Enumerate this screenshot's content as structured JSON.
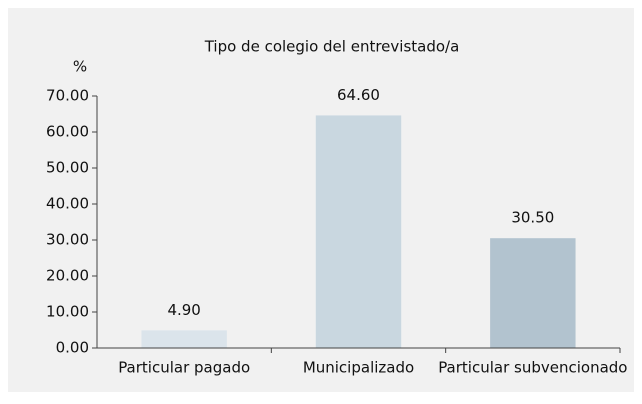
{
  "chart_data": {
    "type": "bar",
    "title": "Tipo de colegio del entrevistado/a",
    "y_label": "%",
    "categories": [
      "Particular pagado",
      "Municipalizado",
      "Particular subvencionado"
    ],
    "values": [
      4.9,
      64.6,
      30.5
    ],
    "value_labels": [
      "4.90",
      "64.60",
      "30.50"
    ],
    "colors": [
      "#dbe4eb",
      "#c9d7e0",
      "#b2c3cf"
    ],
    "ylim": [
      0,
      70
    ],
    "yticks": [
      {
        "value": 0,
        "label": "0.00"
      },
      {
        "value": 10,
        "label": "10.00"
      },
      {
        "value": 20,
        "label": "20.00"
      },
      {
        "value": 30,
        "label": "30.00"
      },
      {
        "value": 40,
        "label": "40.00"
      },
      {
        "value": 50,
        "label": "50.00"
      },
      {
        "value": 60,
        "label": "60.00"
      },
      {
        "value": 70,
        "label": "70.00"
      }
    ],
    "grid": false
  }
}
